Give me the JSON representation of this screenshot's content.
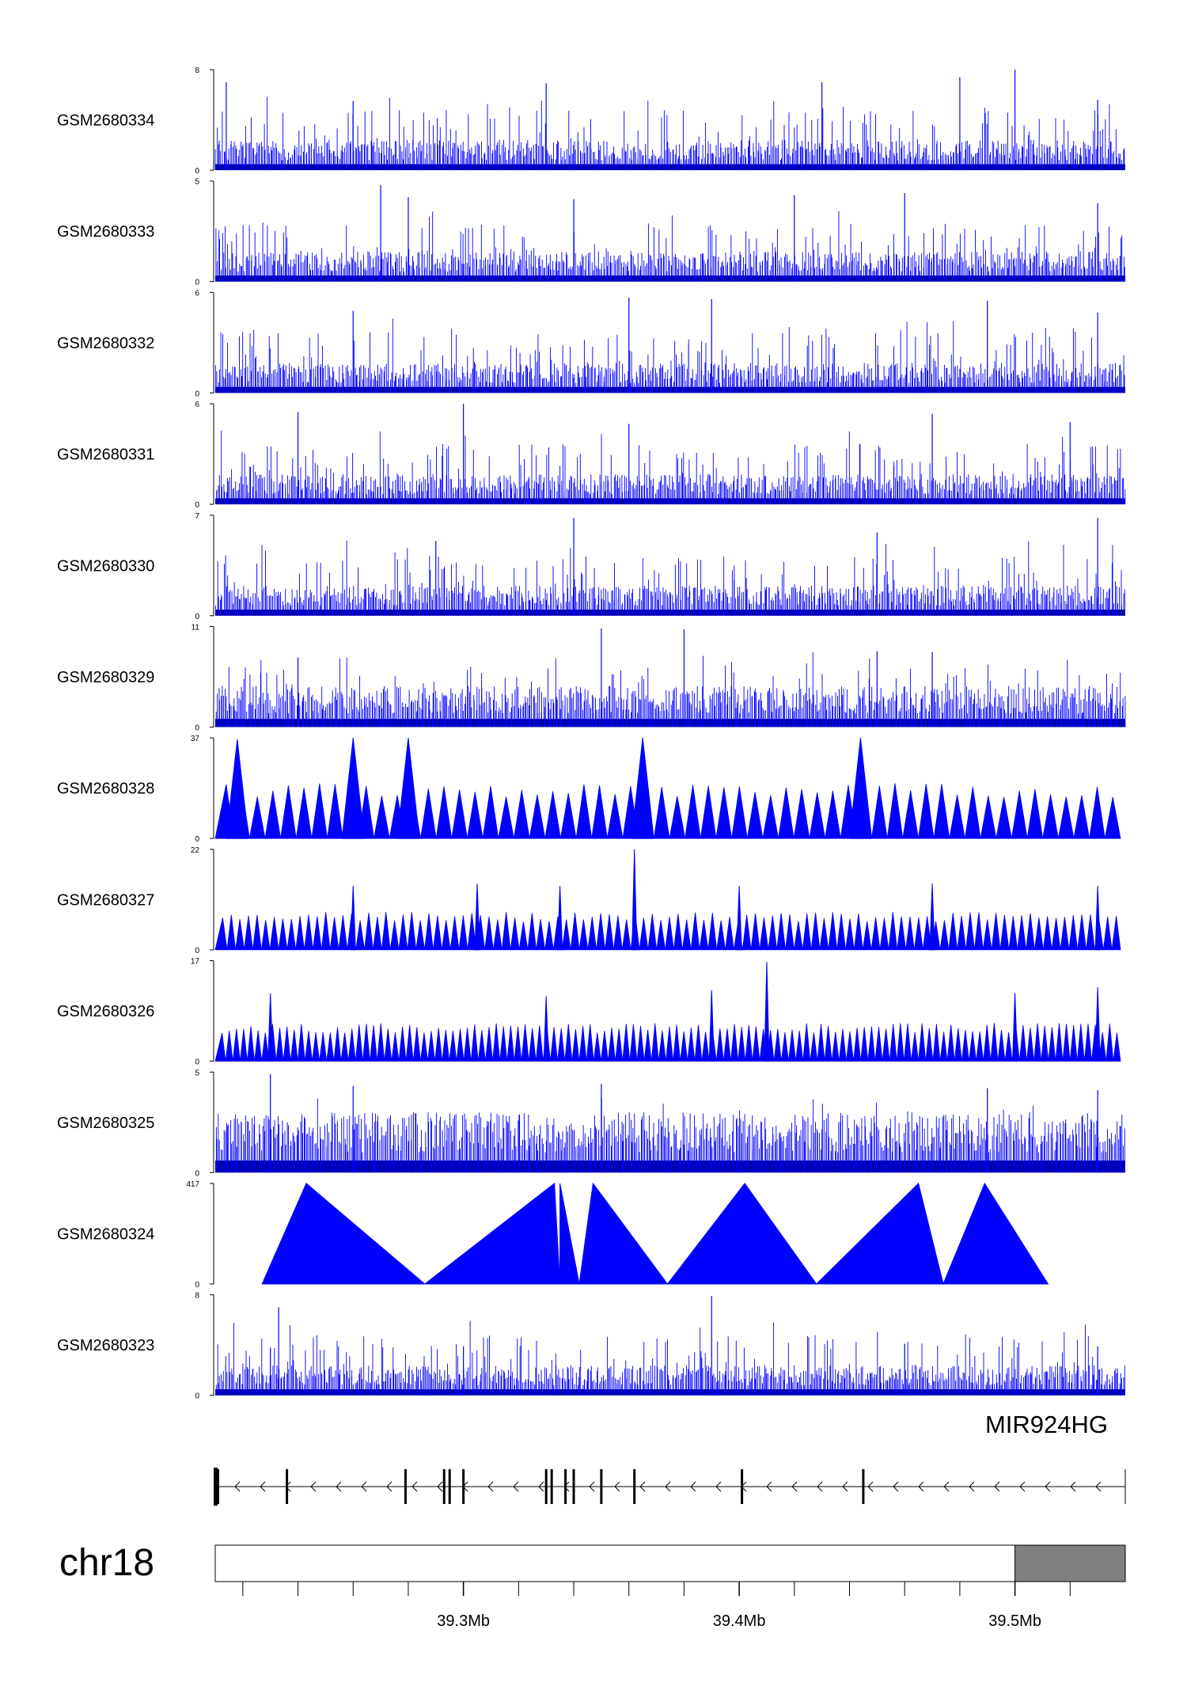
{
  "chart_data": {
    "type": "area",
    "title": "",
    "chromosome": "chr18",
    "x_unit": "Mb",
    "xlim": [
      39.21,
      39.54
    ],
    "axis": {
      "major_ticks": [
        39.3,
        39.4,
        39.5
      ],
      "major_labels": [
        "39.3Mb",
        "39.4Mb",
        "39.5Mb"
      ],
      "minor_ticks": [
        39.22,
        39.24,
        39.26,
        39.28,
        39.32,
        39.34,
        39.36,
        39.38,
        39.42,
        39.44,
        39.46,
        39.48,
        39.52
      ]
    },
    "ideogram": {
      "highlight_start": 39.5,
      "highlight_end": 39.54,
      "fill": "#808080"
    },
    "gene": {
      "name": "MIR924HG",
      "strand": "-",
      "start": 39.21,
      "end": 39.54,
      "exons": [
        39.211,
        39.236,
        39.279,
        39.293,
        39.295,
        39.3,
        39.33,
        39.332,
        39.337,
        39.34,
        39.35,
        39.362,
        39.401,
        39.445
      ]
    },
    "series_color": "#0000ff",
    "series_edge_color": "#000080",
    "series": [
      {
        "name": "GSM2680334",
        "ymax": 8,
        "style": "dense",
        "baseline": 0.8,
        "peaks": [
          [
            39.214,
            7
          ],
          [
            39.26,
            5.5
          ],
          [
            39.33,
            6.9
          ],
          [
            39.43,
            7
          ],
          [
            39.48,
            7.4
          ],
          [
            39.5,
            8
          ],
          [
            39.53,
            5.6
          ]
        ]
      },
      {
        "name": "GSM2680333",
        "ymax": 5,
        "style": "dense",
        "baseline": 0.5,
        "peaks": [
          [
            39.27,
            4.8
          ],
          [
            39.28,
            4.2
          ],
          [
            39.34,
            4.1
          ],
          [
            39.42,
            4.3
          ],
          [
            39.46,
            4.4
          ],
          [
            39.53,
            3.9
          ]
        ]
      },
      {
        "name": "GSM2680332",
        "ymax": 6,
        "style": "dense",
        "baseline": 0.6,
        "peaks": [
          [
            39.26,
            4.9
          ],
          [
            39.36,
            5.7
          ],
          [
            39.39,
            5.6
          ],
          [
            39.49,
            5.5
          ],
          [
            39.53,
            4.8
          ]
        ]
      },
      {
        "name": "GSM2680331",
        "ymax": 6,
        "style": "dense",
        "baseline": 0.6,
        "peaks": [
          [
            39.24,
            5.5
          ],
          [
            39.3,
            6
          ],
          [
            39.36,
            4.8
          ],
          [
            39.47,
            5.4
          ],
          [
            39.52,
            4.9
          ]
        ]
      },
      {
        "name": "GSM2680330",
        "ymax": 7,
        "style": "dense",
        "baseline": 0.7,
        "peaks": [
          [
            39.29,
            5.2
          ],
          [
            39.34,
            6.8
          ],
          [
            39.45,
            5.8
          ],
          [
            39.53,
            6.8
          ]
        ]
      },
      {
        "name": "GSM2680329",
        "ymax": 11,
        "style": "dense",
        "baseline": 1.5,
        "peaks": [
          [
            39.24,
            7.6
          ],
          [
            39.35,
            10.8
          ],
          [
            39.38,
            10.7
          ],
          [
            39.45,
            8.3
          ],
          [
            39.47,
            8.2
          ]
        ]
      },
      {
        "name": "GSM2680328",
        "ymax": 37,
        "style": "triangles",
        "baseline": 0,
        "peaks": [
          [
            39.218,
            36.5
          ],
          [
            39.26,
            37
          ],
          [
            39.28,
            37
          ],
          [
            39.365,
            37
          ],
          [
            39.444,
            37
          ],
          [
            39.22,
            18
          ],
          [
            39.3,
            18
          ],
          [
            39.33,
            18
          ],
          [
            39.4,
            18
          ],
          [
            39.48,
            18
          ],
          [
            39.52,
            18
          ]
        ]
      },
      {
        "name": "GSM2680327",
        "ymax": 22,
        "style": "triangles",
        "baseline": 0,
        "peaks": [
          [
            39.26,
            14
          ],
          [
            39.305,
            14.5
          ],
          [
            39.335,
            14
          ],
          [
            39.362,
            22
          ],
          [
            39.4,
            14
          ],
          [
            39.47,
            14.5
          ],
          [
            39.53,
            14
          ],
          [
            39.24,
            7
          ],
          [
            39.3,
            7
          ],
          [
            39.42,
            7
          ],
          [
            39.5,
            7
          ]
        ]
      },
      {
        "name": "GSM2680326",
        "ymax": 17,
        "style": "triangles",
        "baseline": 0,
        "peaks": [
          [
            39.23,
            11.5
          ],
          [
            39.33,
            11
          ],
          [
            39.39,
            12
          ],
          [
            39.41,
            16.8
          ],
          [
            39.5,
            11.5
          ],
          [
            39.53,
            12.5
          ],
          [
            39.26,
            5.5
          ],
          [
            39.36,
            5.5
          ],
          [
            39.45,
            5.5
          ]
        ]
      },
      {
        "name": "GSM2680325",
        "ymax": 5,
        "style": "dense",
        "baseline": 1,
        "peaks": [
          [
            39.23,
            4.9
          ],
          [
            39.26,
            4.3
          ],
          [
            39.35,
            4.4
          ],
          [
            39.49,
            4.2
          ],
          [
            39.53,
            4.1
          ]
        ]
      },
      {
        "name": "GSM2680324",
        "ymax": 417,
        "style": "triangles",
        "baseline": 0,
        "peaks": [
          [
            39.243,
            417
          ],
          [
            39.333,
            417
          ],
          [
            39.335,
            417
          ],
          [
            39.347,
            417
          ],
          [
            39.402,
            417
          ],
          [
            39.465,
            417
          ],
          [
            39.489,
            417
          ]
        ]
      },
      {
        "name": "GSM2680323",
        "ymax": 8,
        "style": "dense",
        "baseline": 0.8,
        "peaks": [
          [
            39.233,
            7
          ],
          [
            39.23,
            3.8
          ],
          [
            39.3,
            3.9
          ],
          [
            39.39,
            7.9
          ],
          [
            39.46,
            4.1
          ],
          [
            39.53,
            3.9
          ]
        ]
      }
    ]
  }
}
